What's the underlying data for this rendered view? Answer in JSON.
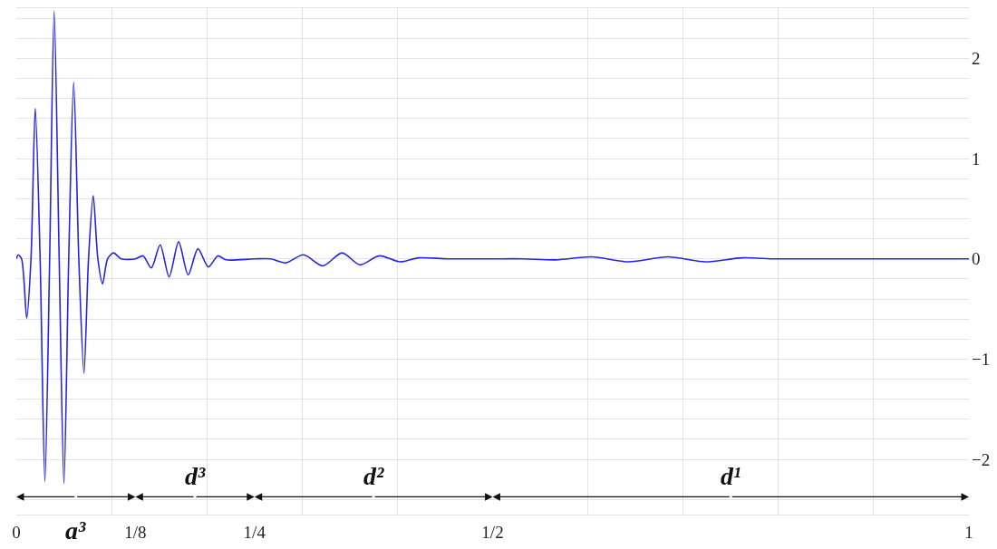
{
  "chart_data": {
    "type": "line",
    "x": [
      0,
      0.002,
      0.0055,
      0.0109,
      0.0154,
      0.0199,
      0.025,
      0.03,
      0.035,
      0.0397,
      0.045,
      0.05,
      0.055,
      0.0602,
      0.0656,
      0.071,
      0.0758,
      0.0807,
      0.0856,
      0.0905,
      0.0958,
      0.102,
      0.11,
      0.125,
      0.133,
      0.1417,
      0.151,
      0.1604,
      0.1704,
      0.1804,
      0.1907,
      0.2016,
      0.2116,
      0.22,
      0.25,
      0.267,
      0.2828,
      0.3015,
      0.3218,
      0.342,
      0.3608,
      0.381,
      0.403,
      0.4223,
      0.4537,
      0.5,
      0.532,
      0.5665,
      0.604,
      0.643,
      0.684,
      0.723,
      0.762,
      0.797,
      0.84,
      1
    ],
    "series": [
      {
        "color": "#2424e6",
        "values": [
          0,
          0.04,
          0,
          -0.59,
          0,
          1.5,
          0,
          -2.22,
          0,
          2.47,
          0,
          -2.24,
          0,
          1.76,
          0,
          -1.14,
          0,
          0.63,
          0,
          -0.25,
          0,
          0.06,
          0,
          0,
          0.03,
          -0.09,
          0.14,
          -0.18,
          0.17,
          -0.16,
          0.1,
          -0.08,
          0.03,
          -0.01,
          0,
          0,
          -0.04,
          0.04,
          -0.07,
          0.06,
          -0.06,
          0.03,
          -0.03,
          0.01,
          0,
          0,
          0,
          -0.01,
          0.02,
          -0.03,
          0.02,
          -0.03,
          0.01,
          0,
          0,
          0
        ]
      }
    ],
    "xlim": [
      0,
      1
    ],
    "ylim": [
      -2.55,
      2.5
    ],
    "xticks": [
      0,
      {
        "value": 0.1,
        "label": null
      },
      {
        "value": 0.125,
        "label": "1/8"
      },
      {
        "value": 0.2,
        "label": null
      },
      {
        "value": 0.25,
        "label": "1/4"
      },
      {
        "value": 0.3,
        "label": null
      },
      {
        "value": 0.4,
        "label": null
      },
      {
        "value": 0.5,
        "label": "1/2"
      },
      {
        "value": 0.6,
        "label": null
      },
      {
        "value": 0.7,
        "label": null
      },
      {
        "value": 0.8,
        "label": null
      },
      {
        "value": 0.9,
        "label": null
      },
      1
    ],
    "yticks": [
      {
        "value": -2.4,
        "label": null
      },
      -2,
      {
        "value": -1.8,
        "label": null
      },
      {
        "value": -1.6,
        "label": null
      },
      {
        "value": -1.4,
        "label": null
      },
      {
        "value": -1.2,
        "label": null
      },
      -1,
      {
        "value": -0.8,
        "label": null
      },
      {
        "value": -0.6,
        "label": null
      },
      {
        "value": -0.4,
        "label": null
      },
      {
        "value": -0.2,
        "label": null
      },
      0,
      {
        "value": 0.2,
        "label": null
      },
      {
        "value": 0.4,
        "label": null
      },
      {
        "value": 0.6,
        "label": null
      },
      {
        "value": 0.8,
        "label": null
      },
      1,
      {
        "value": 1.2,
        "label": null
      },
      {
        "value": 1.4,
        "label": null
      },
      {
        "value": 1.6,
        "label": null
      },
      {
        "value": 1.8,
        "label": null
      },
      2,
      {
        "value": 2.2,
        "label": null
      },
      {
        "value": 2.4,
        "label": null
      }
    ],
    "annotations": [
      "a³",
      "d³",
      "d²",
      "d¹"
    ],
    "grid": true,
    "marker": "none"
  }
}
